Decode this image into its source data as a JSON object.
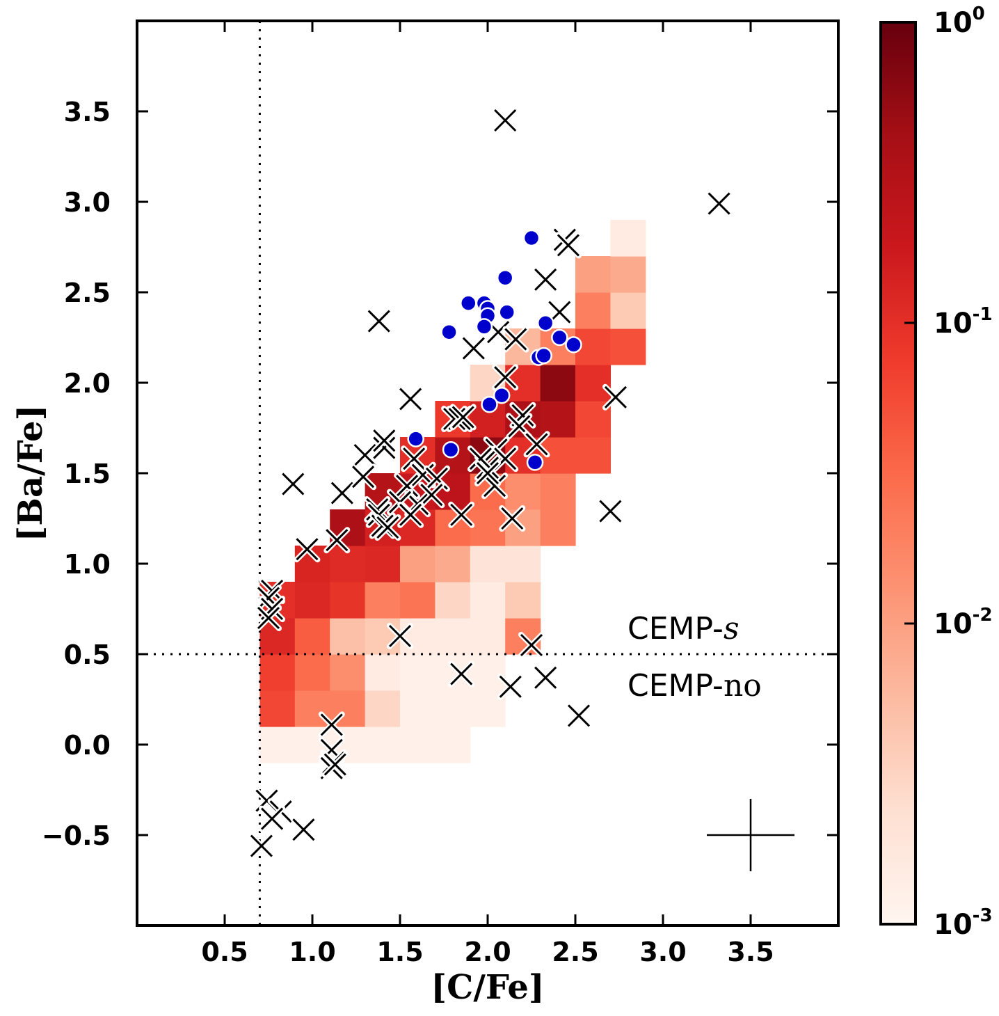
{
  "chart_data": {
    "type": "scatter",
    "xlabel": "[C/Fe]",
    "ylabel": "[Ba/Fe]",
    "xlim": [
      0.0,
      4.0
    ],
    "ylim": [
      -1.0,
      4.0
    ],
    "x_ticks": [
      "0.5",
      "1.0",
      "1.5",
      "2.0",
      "2.5",
      "3.0",
      "3.5"
    ],
    "y_ticks": [
      "−0.5",
      "0.0",
      "0.5",
      "1.0",
      "1.5",
      "2.0",
      "2.5",
      "3.0",
      "3.5"
    ],
    "annotations": {
      "cemp_s": "CEMP-s",
      "cemp_no": "CEMP-no",
      "cemp_s_parts": [
        "CEMP-",
        "s"
      ],
      "cemp_no_parts": [
        "CEMP-",
        "no"
      ]
    },
    "thresholds": {
      "x": 0.7,
      "y": 0.5
    },
    "colorbar": {
      "scale": "log",
      "range": [
        0.001,
        1
      ],
      "tick_bases": [
        "10",
        "10",
        "10",
        "10"
      ],
      "tick_exponents": [
        "-3",
        "-2",
        "-1",
        "0"
      ],
      "colors": [
        "#fff5f0",
        "#fee0d2",
        "#fcbba1",
        "#fc9272",
        "#fb6a4a",
        "#ef3b2c",
        "#cb181d",
        "#a50f15",
        "#67000d"
      ]
    },
    "heatmap": {
      "bin_width": 0.2,
      "bin_height": 0.2,
      "cells": [
        [
          0.7,
          -0.1,
          0.0012
        ],
        [
          0.9,
          -0.1,
          0.0012
        ],
        [
          1.1,
          -0.1,
          0.0012
        ],
        [
          1.3,
          -0.1,
          0.0012
        ],
        [
          1.5,
          -0.1,
          0.0012
        ],
        [
          1.7,
          -0.1,
          0.0012
        ],
        [
          0.7,
          0.1,
          0.06
        ],
        [
          0.9,
          0.1,
          0.02
        ],
        [
          1.1,
          0.1,
          0.02
        ],
        [
          1.3,
          0.1,
          0.003
        ],
        [
          1.5,
          0.1,
          0.0012
        ],
        [
          1.7,
          0.1,
          0.0012
        ],
        [
          1.9,
          0.1,
          0.0012
        ],
        [
          0.7,
          0.3,
          0.07
        ],
        [
          0.9,
          0.3,
          0.03
        ],
        [
          1.1,
          0.3,
          0.015
        ],
        [
          1.3,
          0.3,
          0.0015
        ],
        [
          1.5,
          0.3,
          0.0012
        ],
        [
          1.7,
          0.3,
          0.0012
        ],
        [
          1.9,
          0.3,
          0.0012
        ],
        [
          0.7,
          0.5,
          0.12
        ],
        [
          0.9,
          0.5,
          0.04
        ],
        [
          1.1,
          0.5,
          0.005
        ],
        [
          1.3,
          0.5,
          0.004
        ],
        [
          1.5,
          0.5,
          0.0015
        ],
        [
          1.7,
          0.5,
          0.0015
        ],
        [
          1.9,
          0.5,
          0.0015
        ],
        [
          2.1,
          0.5,
          0.02
        ],
        [
          0.7,
          0.7,
          0.1
        ],
        [
          0.9,
          0.7,
          0.12
        ],
        [
          1.1,
          0.7,
          0.09
        ],
        [
          1.3,
          0.7,
          0.02
        ],
        [
          1.5,
          0.7,
          0.025
        ],
        [
          1.7,
          0.7,
          0.003
        ],
        [
          1.9,
          0.7,
          0.0015
        ],
        [
          2.1,
          0.7,
          0.004
        ],
        [
          0.9,
          0.9,
          0.13
        ],
        [
          1.1,
          0.9,
          0.11
        ],
        [
          1.3,
          0.9,
          0.12
        ],
        [
          1.5,
          0.9,
          0.01
        ],
        [
          1.7,
          0.9,
          0.008
        ],
        [
          1.9,
          0.9,
          0.002
        ],
        [
          2.1,
          0.9,
          0.002
        ],
        [
          1.1,
          1.1,
          0.35
        ],
        [
          1.3,
          1.1,
          0.15
        ],
        [
          1.5,
          1.1,
          0.12
        ],
        [
          1.7,
          1.1,
          0.03
        ],
        [
          1.9,
          1.1,
          0.025
        ],
        [
          2.1,
          1.1,
          0.01
        ],
        [
          2.3,
          1.1,
          0.02
        ],
        [
          1.3,
          1.3,
          0.3
        ],
        [
          1.5,
          1.3,
          0.2
        ],
        [
          1.7,
          1.3,
          0.25
        ],
        [
          1.9,
          1.3,
          0.03
        ],
        [
          2.1,
          1.3,
          0.015
        ],
        [
          2.3,
          1.3,
          0.02
        ],
        [
          1.5,
          1.5,
          0.1
        ],
        [
          1.7,
          1.5,
          0.3
        ],
        [
          1.9,
          1.5,
          0.6
        ],
        [
          2.1,
          1.5,
          0.1
        ],
        [
          2.3,
          1.5,
          0.05
        ],
        [
          2.5,
          1.5,
          0.05
        ],
        [
          1.7,
          1.7,
          0.08
        ],
        [
          1.9,
          1.7,
          0.15
        ],
        [
          2.1,
          1.7,
          0.35
        ],
        [
          2.3,
          1.7,
          0.3
        ],
        [
          2.5,
          1.7,
          0.06
        ],
        [
          1.9,
          1.9,
          0.003
        ],
        [
          2.1,
          1.9,
          0.1
        ],
        [
          2.3,
          1.9,
          0.6
        ],
        [
          2.5,
          1.9,
          0.1
        ],
        [
          2.1,
          2.1,
          0.006
        ],
        [
          2.3,
          2.1,
          0.02
        ],
        [
          2.5,
          2.1,
          0.06
        ],
        [
          2.7,
          2.1,
          0.05
        ],
        [
          2.5,
          2.3,
          0.02
        ],
        [
          2.7,
          2.3,
          0.004
        ],
        [
          2.5,
          2.5,
          0.01
        ],
        [
          2.7,
          2.5,
          0.008
        ],
        [
          2.7,
          2.7,
          0.0015
        ]
      ]
    },
    "series": [
      {
        "marker": "x",
        "color": "#000000",
        "points": [
          [
            2.1,
            3.45
          ],
          [
            3.32,
            2.99
          ],
          [
            2.44,
            2.79
          ],
          [
            2.46,
            2.76
          ],
          [
            2.33,
            2.57
          ],
          [
            1.38,
            2.34
          ],
          [
            2.41,
            2.39
          ],
          [
            1.92,
            2.19
          ],
          [
            2.06,
            2.28
          ],
          [
            2.16,
            2.24
          ],
          [
            2.1,
            2.03
          ],
          [
            1.56,
            1.91
          ],
          [
            1.81,
            1.8
          ],
          [
            1.84,
            1.8
          ],
          [
            1.86,
            1.81
          ],
          [
            2.2,
            1.82
          ],
          [
            2.73,
            1.92
          ],
          [
            2.18,
            1.76
          ],
          [
            2.28,
            1.66
          ],
          [
            0.89,
            1.44
          ],
          [
            1.17,
            1.39
          ],
          [
            1.3,
            1.6
          ],
          [
            1.41,
            1.64
          ],
          [
            1.41,
            1.68
          ],
          [
            1.58,
            1.58
          ],
          [
            1.63,
            1.49
          ],
          [
            1.71,
            1.47
          ],
          [
            1.54,
            1.43
          ],
          [
            1.6,
            1.33
          ],
          [
            1.68,
            1.38
          ],
          [
            2.05,
            1.63
          ],
          [
            2.1,
            1.58
          ],
          [
            2.0,
            1.53
          ],
          [
            2.04,
            1.43
          ],
          [
            1.96,
            1.58
          ],
          [
            2.0,
            1.5
          ],
          [
            1.37,
            1.3
          ],
          [
            1.38,
            1.27
          ],
          [
            1.4,
            1.21
          ],
          [
            1.43,
            1.2
          ],
          [
            1.5,
            1.34
          ],
          [
            1.56,
            1.27
          ],
          [
            1.29,
            1.48
          ],
          [
            1.85,
            1.27
          ],
          [
            2.14,
            1.25
          ],
          [
            2.7,
            1.29
          ],
          [
            0.97,
            1.08
          ],
          [
            1.14,
            1.13
          ],
          [
            1.5,
            0.6
          ],
          [
            2.25,
            0.55
          ],
          [
            1.85,
            0.39
          ],
          [
            2.13,
            0.32
          ],
          [
            2.33,
            0.37
          ],
          [
            2.52,
            0.16
          ],
          [
            0.77,
            0.85
          ],
          [
            0.75,
            0.81
          ],
          [
            0.77,
            0.75
          ],
          [
            0.75,
            0.7
          ],
          [
            1.11,
            0.11
          ],
          [
            1.11,
            -0.03
          ],
          [
            1.12,
            -0.1
          ],
          [
            1.11,
            -0.13
          ],
          [
            1.13,
            -0.11
          ],
          [
            0.74,
            -0.31
          ],
          [
            0.82,
            -0.37
          ],
          [
            0.77,
            -0.41
          ],
          [
            0.95,
            -0.47
          ],
          [
            0.71,
            -0.56
          ]
        ]
      },
      {
        "marker": "o",
        "color": "#0000cc",
        "points": [
          [
            2.25,
            2.8
          ],
          [
            2.1,
            2.58
          ],
          [
            1.89,
            2.44
          ],
          [
            1.98,
            2.44
          ],
          [
            2.0,
            2.41
          ],
          [
            2.0,
            2.37
          ],
          [
            2.11,
            2.39
          ],
          [
            1.98,
            2.31
          ],
          [
            1.78,
            2.28
          ],
          [
            2.33,
            2.33
          ],
          [
            2.41,
            2.25
          ],
          [
            2.49,
            2.21
          ],
          [
            2.29,
            2.14
          ],
          [
            2.32,
            2.15
          ],
          [
            2.08,
            1.93
          ],
          [
            2.01,
            1.88
          ],
          [
            1.59,
            1.69
          ],
          [
            1.79,
            1.63
          ],
          [
            2.27,
            1.56
          ]
        ]
      }
    ],
    "error_bar": {
      "x": 3.5,
      "y": -0.5,
      "xerr": 0.25,
      "yerr": 0.2
    }
  }
}
